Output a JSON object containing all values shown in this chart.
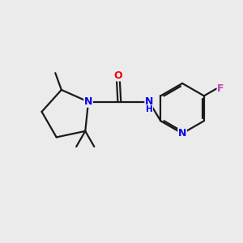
{
  "background_color": "#ebebeb",
  "bond_color": "#1a1a1a",
  "atom_colors": {
    "N": "#0000ee",
    "O": "#ee0000",
    "F": "#bb44bb",
    "C": "#1a1a1a"
  },
  "figsize": [
    3.0,
    3.0
  ],
  "dpi": 100
}
